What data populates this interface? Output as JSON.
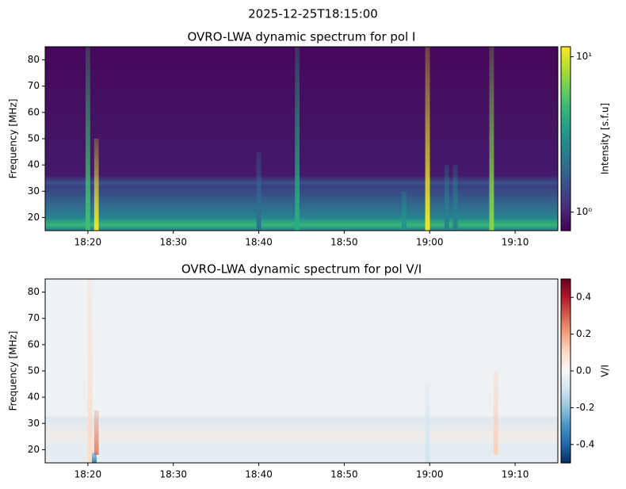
{
  "figure_title": "2025-12-25T18:15:00",
  "chart_data": [
    {
      "type": "heatmap",
      "title": "OVRO-LWA dynamic spectrum for pol I",
      "ylabel": "Frequency [MHz]",
      "xlim": [
        "18:15",
        "19:15"
      ],
      "xticks": [
        "18:20",
        "18:30",
        "18:40",
        "18:50",
        "19:00",
        "19:10"
      ],
      "ylim": [
        15,
        85
      ],
      "yticks": [
        20,
        30,
        40,
        50,
        60,
        70,
        80
      ],
      "colorbar": {
        "label": "Intensity [s.f.u]",
        "scale": "log",
        "colormap": "viridis",
        "clim": [
          0.76,
          11.6
        ],
        "ticks": [
          {
            "value": 1,
            "label": "10⁰"
          },
          {
            "value": 10,
            "label": "10¹"
          }
        ]
      },
      "bursts": [
        {
          "time": "18:20:00",
          "fmin": 15,
          "fmax": 85,
          "value": 5
        },
        {
          "time": "18:21:00",
          "fmin": 15,
          "fmax": 50,
          "value": 11
        },
        {
          "time": "18:40:00",
          "fmin": 15,
          "fmax": 45,
          "value": 2
        },
        {
          "time": "18:44:30",
          "fmin": 15,
          "fmax": 85,
          "value": 4
        },
        {
          "time": "18:57:00",
          "fmin": 15,
          "fmax": 30,
          "value": 3
        },
        {
          "time": "18:59:45",
          "fmin": 15,
          "fmax": 85,
          "value": 11
        },
        {
          "time": "19:02:00",
          "fmin": 15,
          "fmax": 40,
          "value": 2.5
        },
        {
          "time": "19:03:00",
          "fmin": 15,
          "fmax": 40,
          "value": 2.5
        },
        {
          "time": "19:07:15",
          "fmin": 15,
          "fmax": 85,
          "value": 7
        }
      ]
    },
    {
      "type": "heatmap",
      "title": "OVRO-LWA dynamic spectrum for pol V/I",
      "ylabel": "Frequency [MHz]",
      "xlim": [
        "18:15",
        "19:15"
      ],
      "xticks": [
        "18:20",
        "18:30",
        "18:40",
        "18:50",
        "19:00",
        "19:10"
      ],
      "ylim": [
        15,
        85
      ],
      "yticks": [
        20,
        30,
        40,
        50,
        60,
        70,
        80
      ],
      "colorbar": {
        "label": "V/I",
        "scale": "linear",
        "colormap": "RdBu_r",
        "clim": [
          -0.5,
          0.5
        ],
        "ticks": [
          -0.4,
          -0.2,
          {
            "value": 0,
            "label": "0.0"
          },
          0.2,
          0.4
        ]
      },
      "bursts": [
        {
          "time": "18:20:15",
          "fmin": 15,
          "fmax": 85,
          "value": 0.1
        },
        {
          "time": "18:21:00",
          "fmin": 18,
          "fmax": 35,
          "value": 0.25
        },
        {
          "time": "18:20:45",
          "fmin": 15,
          "fmax": 19,
          "value": -0.35
        },
        {
          "time": "18:59:45",
          "fmin": 15,
          "fmax": 45,
          "value": -0.1
        },
        {
          "time": "19:07:45",
          "fmin": 18,
          "fmax": 50,
          "value": 0.12
        }
      ]
    }
  ]
}
